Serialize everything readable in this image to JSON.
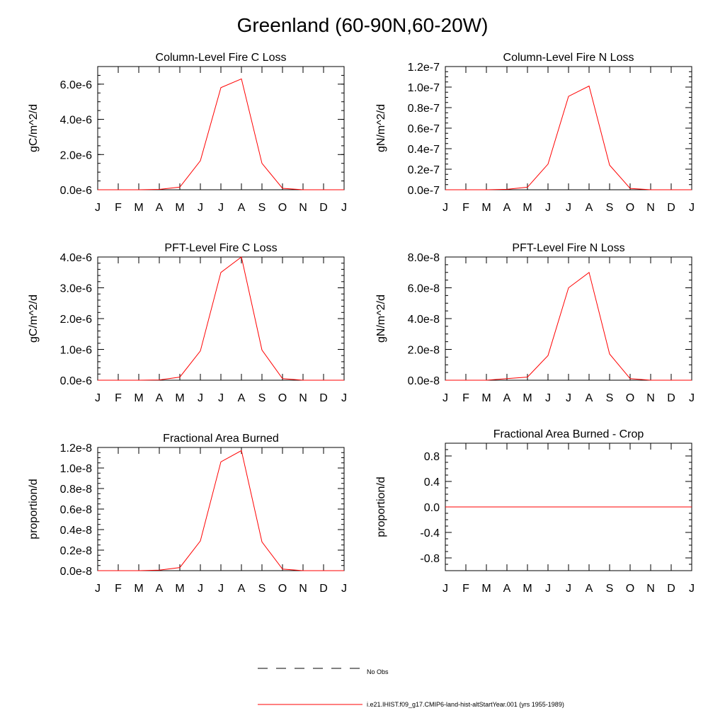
{
  "title": "Greenland (60-90N,60-20W)",
  "months": [
    "J",
    "F",
    "M",
    "A",
    "M",
    "J",
    "J",
    "A",
    "S",
    "O",
    "N",
    "D",
    "J"
  ],
  "legend": {
    "items": [
      {
        "label": "No Obs",
        "style": "dashed",
        "color": "#000000"
      },
      {
        "label": "i.e21.IHIST.f09_g17.CMIP6-land-hist-altStartYear.001 (yrs 1955-1989)",
        "style": "solid",
        "color": "#ff0000"
      }
    ]
  },
  "chart_data": [
    {
      "type": "line",
      "title": "Column-Level Fire C Loss",
      "ylabel": "gC/m^2/d",
      "ylim": [
        0,
        7e-06
      ],
      "yticks": [
        0,
        2e-06,
        4e-06,
        6e-06
      ],
      "ytick_labels": [
        "0.0e-6",
        "2.0e-6",
        "4.0e-6",
        "6.0e-6"
      ],
      "yminor_step": 5e-07,
      "x": [
        0,
        1,
        2,
        3,
        4,
        5,
        6,
        7,
        8,
        9,
        10,
        11,
        12
      ],
      "series": [
        {
          "color": "#ff0000",
          "values": [
            0,
            0,
            0,
            2e-08,
            1.5e-07,
            1.65e-06,
            5.8e-06,
            6.3e-06,
            1.5e-06,
            8e-08,
            0,
            0,
            0
          ]
        }
      ]
    },
    {
      "type": "line",
      "title": "Column-Level Fire N Loss",
      "ylabel": "gN/m^2/d",
      "ylim": [
        0,
        1.2e-07
      ],
      "yticks": [
        0,
        2e-08,
        4e-08,
        6e-08,
        8e-08,
        1e-07,
        1.2e-07
      ],
      "ytick_labels": [
        "0.0e-7",
        "0.2e-7",
        "0.4e-7",
        "0.6e-7",
        "0.8e-7",
        "1.0e-7",
        "1.2e-7"
      ],
      "yminor_step": 5e-09,
      "x": [
        0,
        1,
        2,
        3,
        4,
        5,
        6,
        7,
        8,
        9,
        10,
        11,
        12
      ],
      "series": [
        {
          "color": "#ff0000",
          "values": [
            0,
            0,
            0,
            4e-10,
            2.5e-09,
            2.5e-08,
            9.1e-08,
            1.01e-07,
            2.4e-08,
            1.3e-09,
            0,
            0,
            0
          ]
        }
      ]
    },
    {
      "type": "line",
      "title": "PFT-Level Fire C Loss",
      "ylabel": "gC/m^2/d",
      "ylim": [
        0,
        4e-06
      ],
      "yticks": [
        0,
        1e-06,
        2e-06,
        3e-06,
        4e-06
      ],
      "ytick_labels": [
        "0.0e-6",
        "1.0e-6",
        "2.0e-6",
        "3.0e-6",
        "4.0e-6"
      ],
      "yminor_step": 2e-07,
      "x": [
        0,
        1,
        2,
        3,
        4,
        5,
        6,
        7,
        8,
        9,
        10,
        11,
        12
      ],
      "series": [
        {
          "color": "#ff0000",
          "values": [
            0,
            0,
            0,
            1e-08,
            1e-07,
            9.5e-07,
            3.5e-06,
            4e-06,
            9.8e-07,
            5e-08,
            0,
            0,
            0
          ]
        }
      ]
    },
    {
      "type": "line",
      "title": "PFT-Level Fire N Loss",
      "ylabel": "gN/m^2/d",
      "ylim": [
        0,
        8e-08
      ],
      "yticks": [
        0,
        2e-08,
        4e-08,
        6e-08,
        8e-08
      ],
      "ytick_labels": [
        "0.0e-8",
        "2.0e-8",
        "4.0e-8",
        "6.0e-8",
        "8.0e-8"
      ],
      "yminor_step": 5e-09,
      "x": [
        0,
        1,
        2,
        3,
        4,
        5,
        6,
        7,
        8,
        9,
        10,
        11,
        12
      ],
      "series": [
        {
          "color": "#ff0000",
          "values": [
            0,
            0,
            0,
            1e-09,
            2e-09,
            1.6e-08,
            6e-08,
            7e-08,
            1.7e-08,
            1e-09,
            0,
            0,
            0
          ]
        }
      ]
    },
    {
      "type": "line",
      "title": "Fractional Area Burned",
      "ylabel": "proportion/d",
      "ylim": [
        0,
        1.2e-08
      ],
      "yticks": [
        0,
        2e-09,
        4e-09,
        6e-09,
        8e-09,
        1e-08,
        1.2e-08
      ],
      "ytick_labels": [
        "0.0e-8",
        "0.2e-8",
        "0.4e-8",
        "0.6e-8",
        "0.8e-8",
        "1.0e-8",
        "1.2e-8"
      ],
      "yminor_step": 5e-10,
      "x": [
        0,
        1,
        2,
        3,
        4,
        5,
        6,
        7,
        8,
        9,
        10,
        11,
        12
      ],
      "series": [
        {
          "color": "#ff0000",
          "values": [
            0,
            0,
            0,
            5e-11,
            3e-10,
            2.9e-09,
            1.06e-08,
            1.17e-08,
            2.8e-09,
            1.5e-10,
            0,
            0,
            0
          ]
        }
      ]
    },
    {
      "type": "line",
      "title": "Fractional Area Burned - Crop",
      "ylabel": "proportion/d",
      "ylim": [
        -1.0,
        1.0
      ],
      "yticks": [
        -0.8,
        -0.4,
        0,
        0.4,
        0.8
      ],
      "ytick_labels": [
        "-0.8",
        "-0.4",
        "0.0",
        "0.4",
        "0.8"
      ],
      "yminor_step": 0.1,
      "x": [
        0,
        1,
        2,
        3,
        4,
        5,
        6,
        7,
        8,
        9,
        10,
        11,
        12
      ],
      "series": [
        {
          "color": "#ff0000",
          "values": [
            0,
            0,
            0,
            0,
            0,
            0,
            0,
            0,
            0,
            0,
            0,
            0,
            0
          ]
        }
      ]
    }
  ]
}
